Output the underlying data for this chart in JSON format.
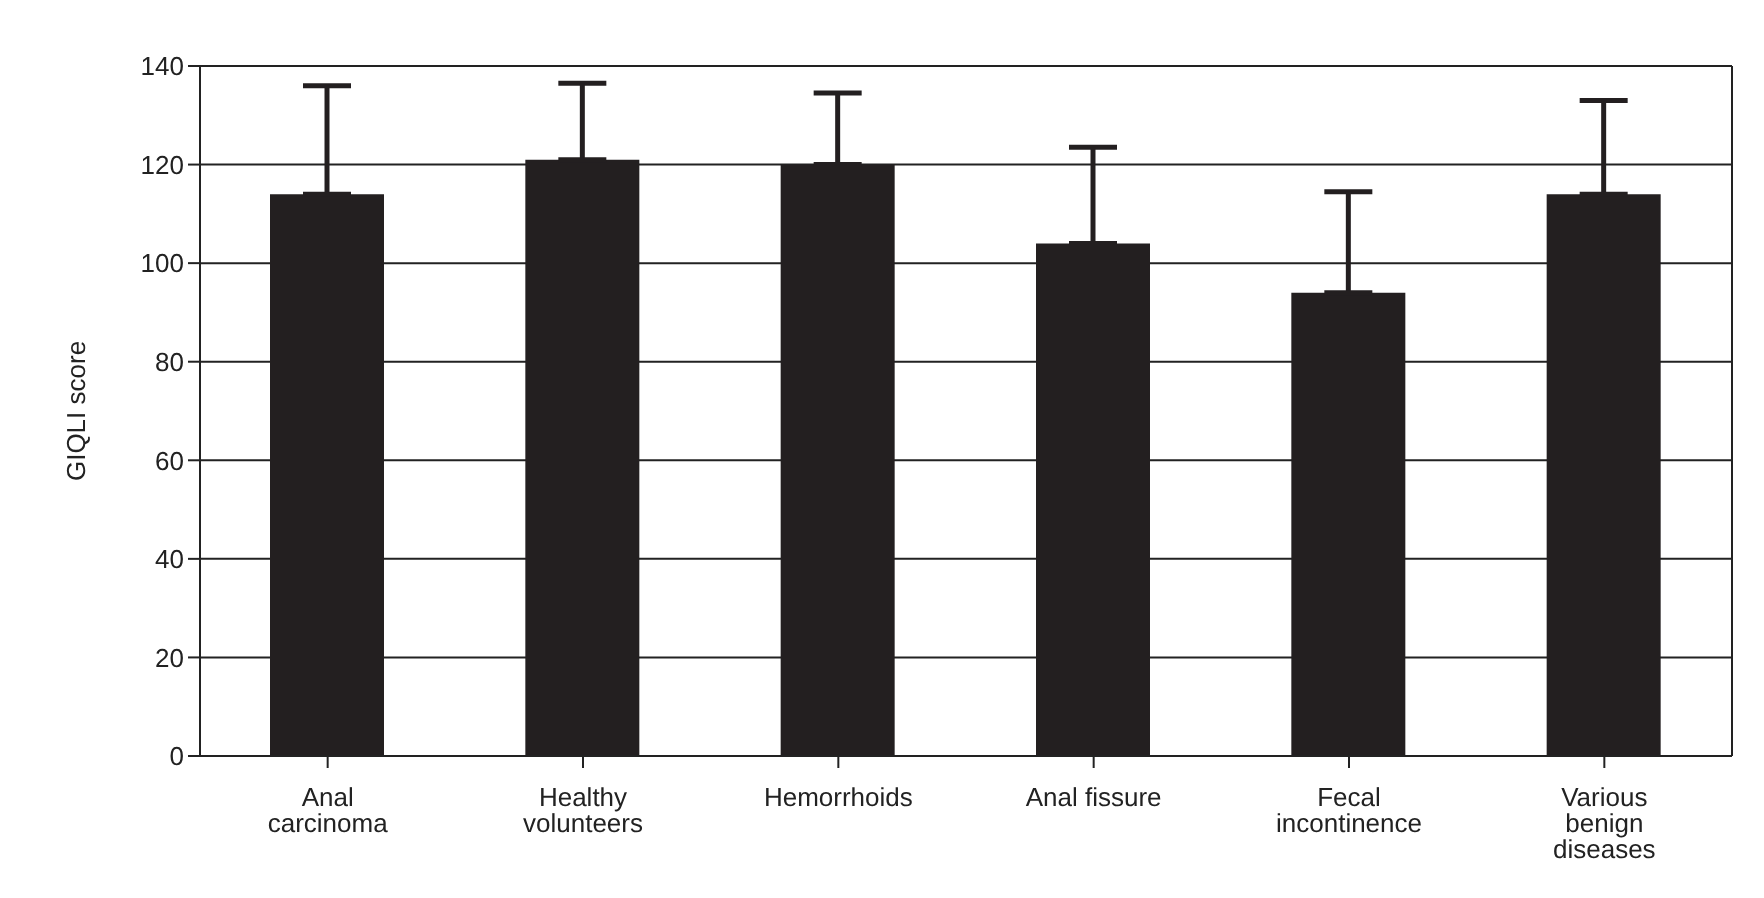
{
  "chart_data": {
    "type": "bar",
    "ylabel": "GIQLI score",
    "categories": [
      "Anal carcinoma",
      "Healthy volunteers",
      "Hemorrhoids",
      "Anal fissure",
      "Fecal incontinence",
      "Various benign diseases"
    ],
    "values": [
      114,
      121,
      120,
      104,
      94,
      114
    ],
    "errors": [
      [
        114,
        136
      ],
      [
        121,
        136.5
      ],
      [
        120,
        134.5
      ],
      [
        104,
        123.5
      ],
      [
        94,
        114.5
      ],
      [
        114,
        133
      ]
    ],
    "color": "#231f20",
    "ylim": [
      0,
      140
    ],
    "yticks": [
      0,
      20,
      40,
      60,
      80,
      100,
      120,
      140
    ],
    "grid": "y",
    "legend": false
  }
}
